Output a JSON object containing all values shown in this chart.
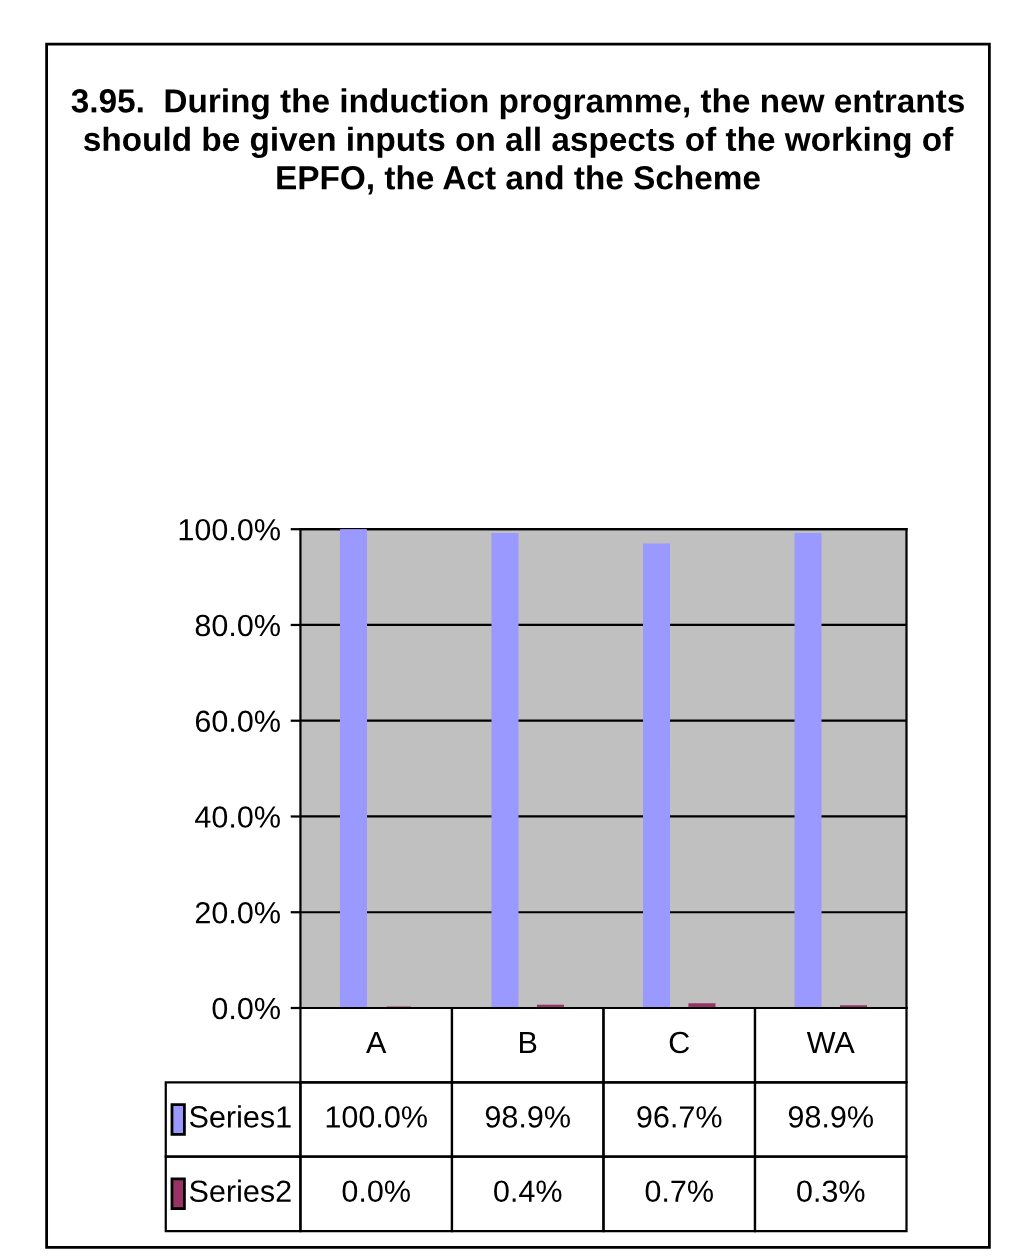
{
  "chart_data": {
    "type": "bar",
    "title": "3.95.  During the induction programme, the new entrants should be given inputs on all aspects of the working of EPFO, the Act and the Scheme",
    "categories": [
      "A",
      "B",
      "C",
      "WA"
    ],
    "series": [
      {
        "name": "Series1",
        "color": "#9999ff",
        "values": [
          100.0,
          98.9,
          96.7,
          98.9
        ],
        "value_labels": [
          "100.0%",
          "98.9%",
          "96.7%",
          "98.9%"
        ]
      },
      {
        "name": "Series2",
        "color": "#993366",
        "values": [
          0.0,
          0.4,
          0.7,
          0.3
        ],
        "value_labels": [
          "0.0%",
          "0.4%",
          "0.7%",
          "0.3%"
        ]
      }
    ],
    "ylim": [
      0,
      100
    ],
    "yticks": [
      {
        "value": 0,
        "label": "0.0%"
      },
      {
        "value": 20,
        "label": "20.0%"
      },
      {
        "value": 40,
        "label": "40.0%"
      },
      {
        "value": 60,
        "label": "60.0%"
      },
      {
        "value": 80,
        "label": "80.0%"
      },
      {
        "value": 100,
        "label": "100.0%"
      }
    ],
    "grid": "y",
    "legend": "bottom"
  }
}
